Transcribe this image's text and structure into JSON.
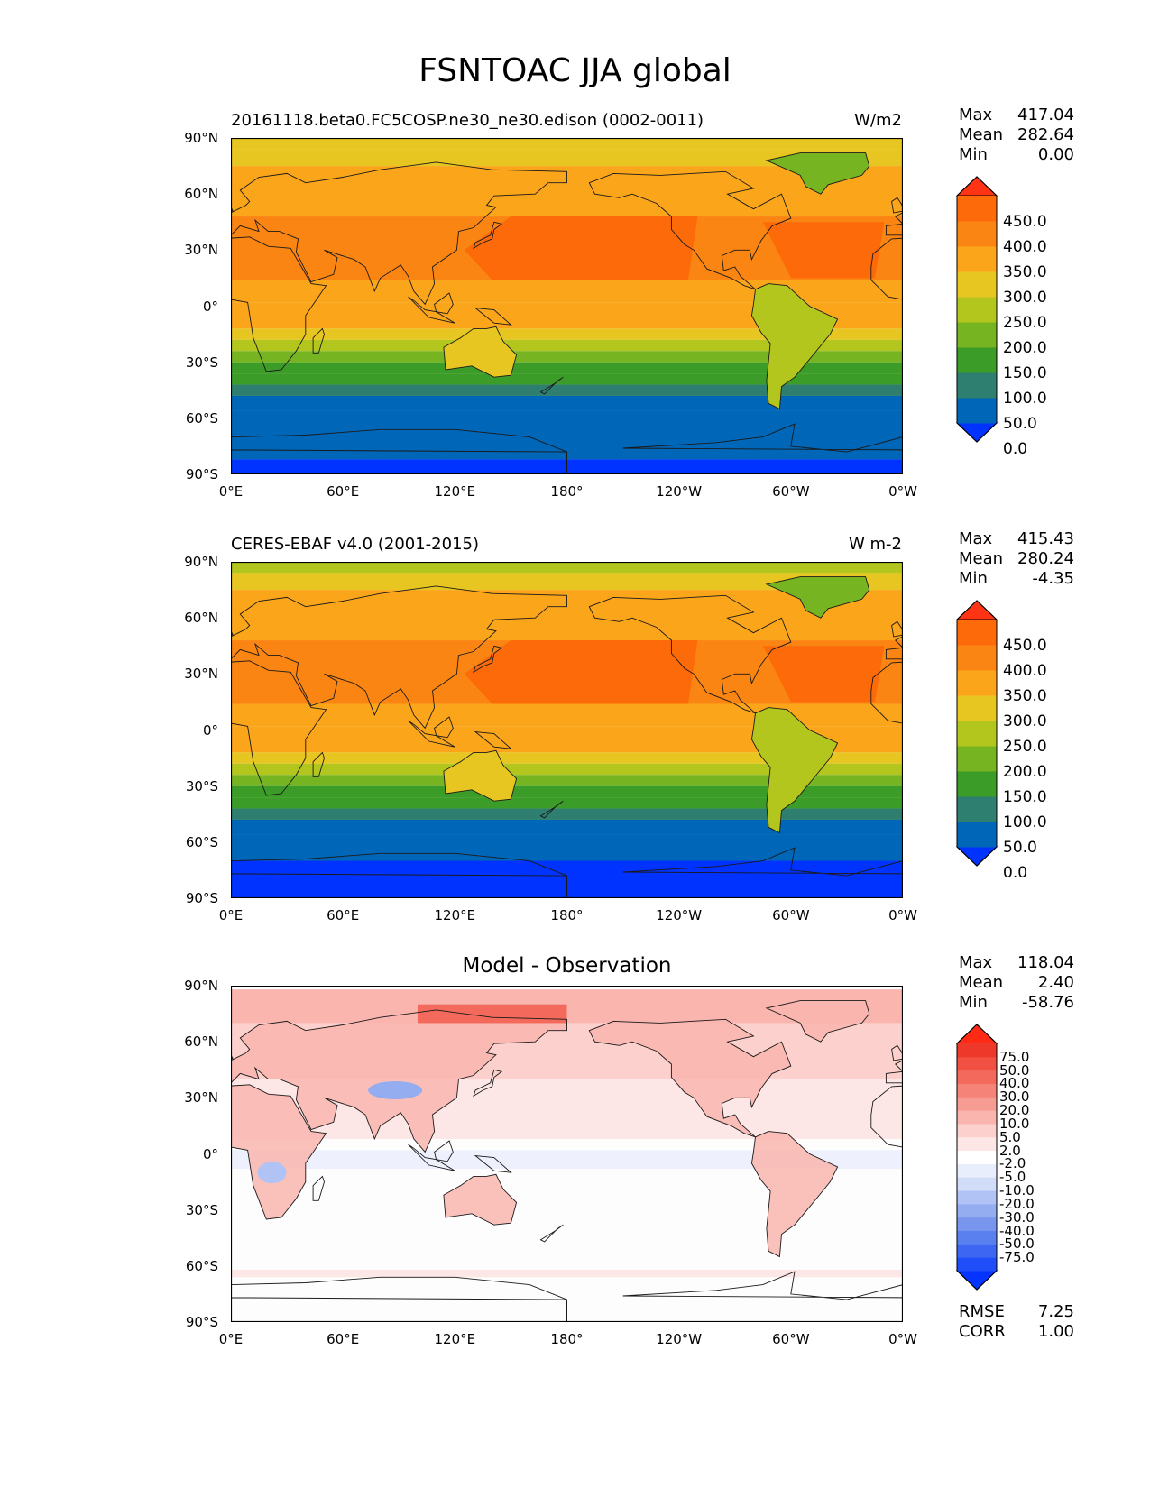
{
  "title": "FSNTOAC JJA global",
  "panels": [
    {
      "title": "20161118.beta0.FC5COSP.ne30_ne30.edison (0002-0011)",
      "units": "W/m2",
      "stats": [
        [
          "Max",
          "417.04"
        ],
        [
          "Mean",
          "282.64"
        ],
        [
          "Min",
          "0.00"
        ]
      ],
      "colorbar": {
        "labels": [
          "450.0",
          "400.0",
          "350.0",
          "300.0",
          "250.0",
          "200.0",
          "150.0",
          "100.0",
          "50.0",
          "0.0"
        ],
        "colors": [
          "#0033ff",
          "#0066b8",
          "#2f7f70",
          "#3c9c28",
          "#76b521",
          "#b3c61e",
          "#e8c622",
          "#fba51a",
          "#fb8512",
          "#fc6a0a",
          "#ff3415"
        ]
      }
    },
    {
      "title": "CERES-EBAF v4.0 (2001-2015)",
      "units": "W m-2",
      "stats": [
        [
          "Max",
          "415.43"
        ],
        [
          "Mean",
          "280.24"
        ],
        [
          "Min",
          "-4.35"
        ]
      ],
      "colorbar": {
        "labels": [
          "450.0",
          "400.0",
          "350.0",
          "300.0",
          "250.0",
          "200.0",
          "150.0",
          "100.0",
          "50.0",
          "0.0"
        ],
        "colors": [
          "#0033ff",
          "#0066b8",
          "#2f7f70",
          "#3c9c28",
          "#76b521",
          "#b3c61e",
          "#e8c622",
          "#fba51a",
          "#fb8512",
          "#fc6a0a",
          "#ff3415"
        ]
      }
    },
    {
      "title": "Model - Observation",
      "units": "",
      "stats": [
        [
          "Max",
          "118.04"
        ],
        [
          "Mean",
          "2.40"
        ],
        [
          "Min",
          "-58.76"
        ]
      ],
      "colorbar": {
        "labels": [
          "75.0",
          "50.0",
          "40.0",
          "30.0",
          "20.0",
          "10.0",
          "5.0",
          "2.0",
          "-2.0",
          "-5.0",
          "-10.0",
          "-20.0",
          "-30.0",
          "-40.0",
          "-50.0",
          "-75.0"
        ],
        "colors": [
          "#0533ff",
          "#1f4ef8",
          "#3d66f2",
          "#5a7fee",
          "#7896ee",
          "#94acf0",
          "#b1c3f4",
          "#d0dcf8",
          "#e8eefc",
          "#ffffff",
          "#fde7e6",
          "#fcd0cc",
          "#f9b5ae",
          "#f79c93",
          "#f58378",
          "#f3695c",
          "#f15043",
          "#ee382a",
          "#ff2a14"
        ]
      },
      "rmse": "7.25",
      "corr": "1.00",
      "rmse_label": "RMSE",
      "corr_label": "CORR"
    }
  ],
  "lat_ticks": [
    "90°N",
    "60°N",
    "30°N",
    "0°",
    "30°S",
    "60°S",
    "90°S"
  ],
  "lon_ticks": [
    "0°E",
    "60°E",
    "120°E",
    "180°",
    "120°W",
    "60°W",
    "0°W"
  ]
}
